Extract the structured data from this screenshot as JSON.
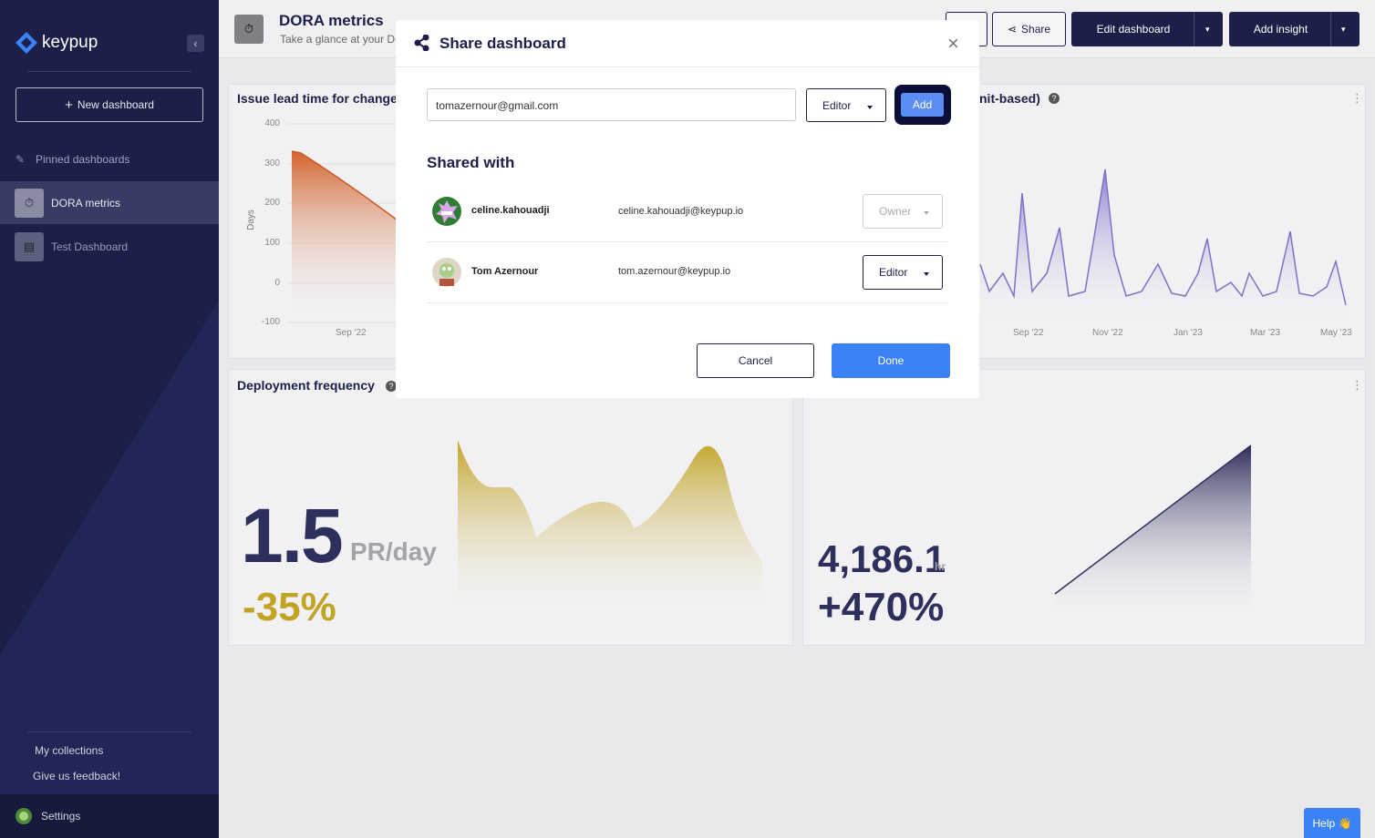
{
  "sidebar": {
    "logo": "keypup",
    "new_dashboard": "New dashboard",
    "pinned_label": "Pinned dashboards",
    "dashboards": [
      "DORA metrics",
      "Test Dashboard"
    ],
    "my_collections": "My collections",
    "feedback": "Give us feedback!",
    "settings": "Settings"
  },
  "header": {
    "title": "DORA metrics",
    "subtitle": "Take a glance at your De",
    "share": "Share",
    "edit_dashboard": "Edit dashboard",
    "add_insight": "Add insight"
  },
  "cards": [
    {
      "title": "Issue lead time for changes",
      "y_axis_label": "Days",
      "y_ticks": [
        "400",
        "300",
        "200",
        "100",
        "0",
        "-100"
      ],
      "x_ticks": [
        "Sep '22"
      ]
    },
    {
      "title": "nit-based)",
      "x_ticks": [
        "Sep '22",
        "Nov '22",
        "Jan '23",
        "Mar '23",
        "May '23"
      ]
    },
    {
      "title": "Deployment frequency",
      "value": "1.5",
      "unit": "PR/day",
      "change": "-35%"
    },
    {
      "value": "4,186.1",
      "unit": "hr",
      "change": "+470%"
    }
  ],
  "modal": {
    "title": "Share dashboard",
    "email_input": "tomazernour@gmail.com",
    "role_select": "Editor",
    "add_button": "Add",
    "shared_with_label": "Shared with",
    "users": [
      {
        "name": "celine.kahouadji",
        "email": "celine.kahouadji@keypup.io",
        "role": "Owner"
      },
      {
        "name": "Tom Azernour",
        "email": "tom.azernour@keypup.io",
        "role": "Editor"
      }
    ],
    "cancel": "Cancel",
    "done": "Done"
  },
  "help_button": "Help 👋"
}
